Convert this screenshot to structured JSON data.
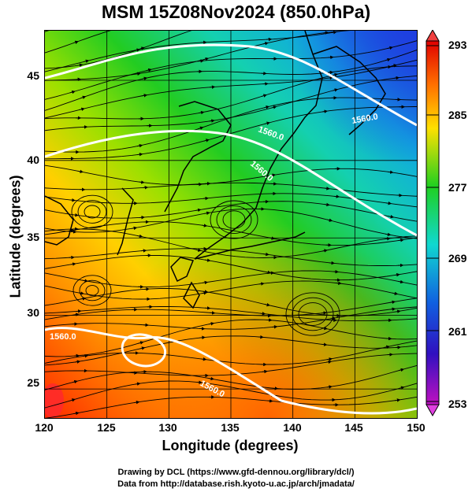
{
  "title": "MSM 15Z08Nov2024 (850.0hPa)",
  "xaxis": {
    "label": "Longitude (degrees)",
    "ticks": [
      "120",
      "125",
      "130",
      "135",
      "140",
      "145",
      "150"
    ]
  },
  "yaxis": {
    "label": "Latitude  (degrees)",
    "ticks": [
      "45",
      "40",
      "35",
      "30",
      "25"
    ]
  },
  "colorbar": {
    "ticks": [
      "293",
      "285",
      "277",
      "269",
      "261",
      "253"
    ],
    "min": 253,
    "max": 293
  },
  "contour_labels": [
    "1560.0",
    "1560.0",
    "1560.0",
    "1560.0",
    "1560.0"
  ],
  "credits": {
    "line1": "Drawing by DCL (https://www.gfd-dennou.org/library/dcl/)",
    "line2": "Data from http://database.rish.kyoto-u.ac.jp/arch/jmadata/"
  },
  "icons": {
    "colorbar_max_arrow": "triangle-up-icon",
    "colorbar_min_arrow": "triangle-down-icon"
  }
}
